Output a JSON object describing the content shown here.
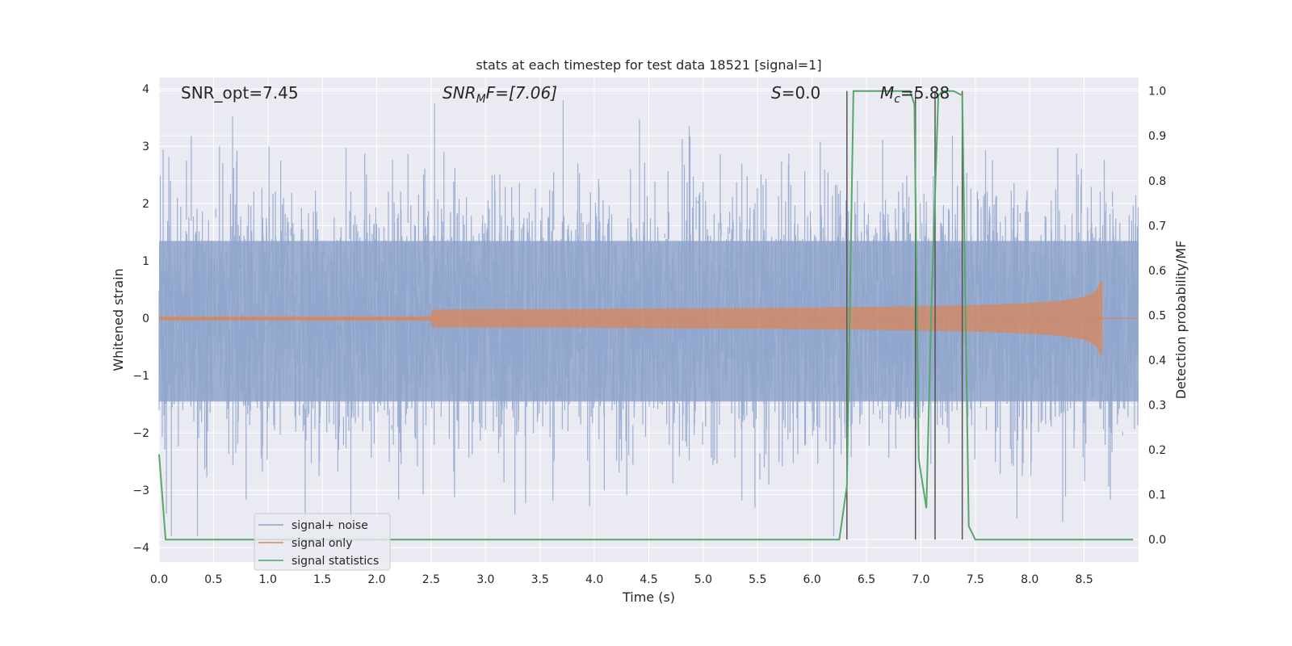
{
  "chart_data": {
    "type": "line",
    "title": "stats at each timestep for test data 18521 [signal=1]",
    "xlabel": "Time (s)",
    "ylabel_left": "Whitened strain",
    "ylabel_right": "Detection probability/MF",
    "xlim": [
      0.0,
      9.0
    ],
    "ylim_left": [
      -4.25,
      4.2
    ],
    "ylim_right": [
      -0.05,
      1.03
    ],
    "x_ticks": [
      "0.0",
      "0.5",
      "1.0",
      "1.5",
      "2.0",
      "2.5",
      "3.0",
      "3.5",
      "4.0",
      "4.5",
      "5.0",
      "5.5",
      "6.0",
      "6.5",
      "7.0",
      "7.5",
      "8.0",
      "8.5"
    ],
    "y_ticks_left": [
      "−4",
      "−3",
      "−2",
      "−1",
      "0",
      "1",
      "2",
      "3",
      "4"
    ],
    "y_ticks_right": [
      "0.0",
      "0.1",
      "0.2",
      "0.3",
      "0.4",
      "0.5",
      "0.6",
      "0.7",
      "0.8",
      "0.9",
      "1.0"
    ],
    "grid": true,
    "legend_position": "lower-left",
    "annotations": {
      "snr_opt": "SNR_opt=7.45",
      "snr_mf_main": "SNR",
      "snr_mf_sub": "M",
      "snr_mf_rest": "F=[7.06]",
      "s_main": "S",
      "s_rest": "=0.0",
      "mc_main": "M",
      "mc_sub": "c",
      "mc_rest": "=5.88"
    },
    "series": [
      {
        "name": "signal+ noise",
        "color": "#8fa5cc",
        "description_values": "whitened noisy strain, roughly gaussian noise between -4 and 4"
      },
      {
        "name": "signal only",
        "color": "#dd8452",
        "chirp_end_time": 8.67,
        "peak_amplitude": 0.65
      },
      {
        "name": "signal statistics",
        "color": "#55a868",
        "x": [
          0.0,
          0.06,
          0.14,
          0.5,
          1.0,
          2.0,
          3.0,
          4.0,
          5.0,
          6.0,
          6.25,
          6.32,
          6.38,
          6.45,
          6.9,
          6.94,
          6.98,
          7.05,
          7.1,
          7.16,
          7.2,
          7.25,
          7.3,
          7.38,
          7.44,
          7.5,
          8.0,
          8.5,
          8.95
        ],
        "y": [
          0.19,
          0.0,
          0.0,
          0.0,
          0.0,
          0.0,
          0.0,
          0.0,
          0.0,
          0.0,
          0.0,
          0.12,
          1.0,
          1.0,
          1.0,
          0.97,
          0.18,
          0.07,
          0.55,
          0.99,
          1.0,
          1.0,
          1.0,
          0.99,
          0.03,
          0.0,
          0.0,
          0.0,
          0.0
        ]
      }
    ],
    "vertical_lines_x": [
      6.32,
      6.95,
      7.13,
      7.38
    ]
  }
}
